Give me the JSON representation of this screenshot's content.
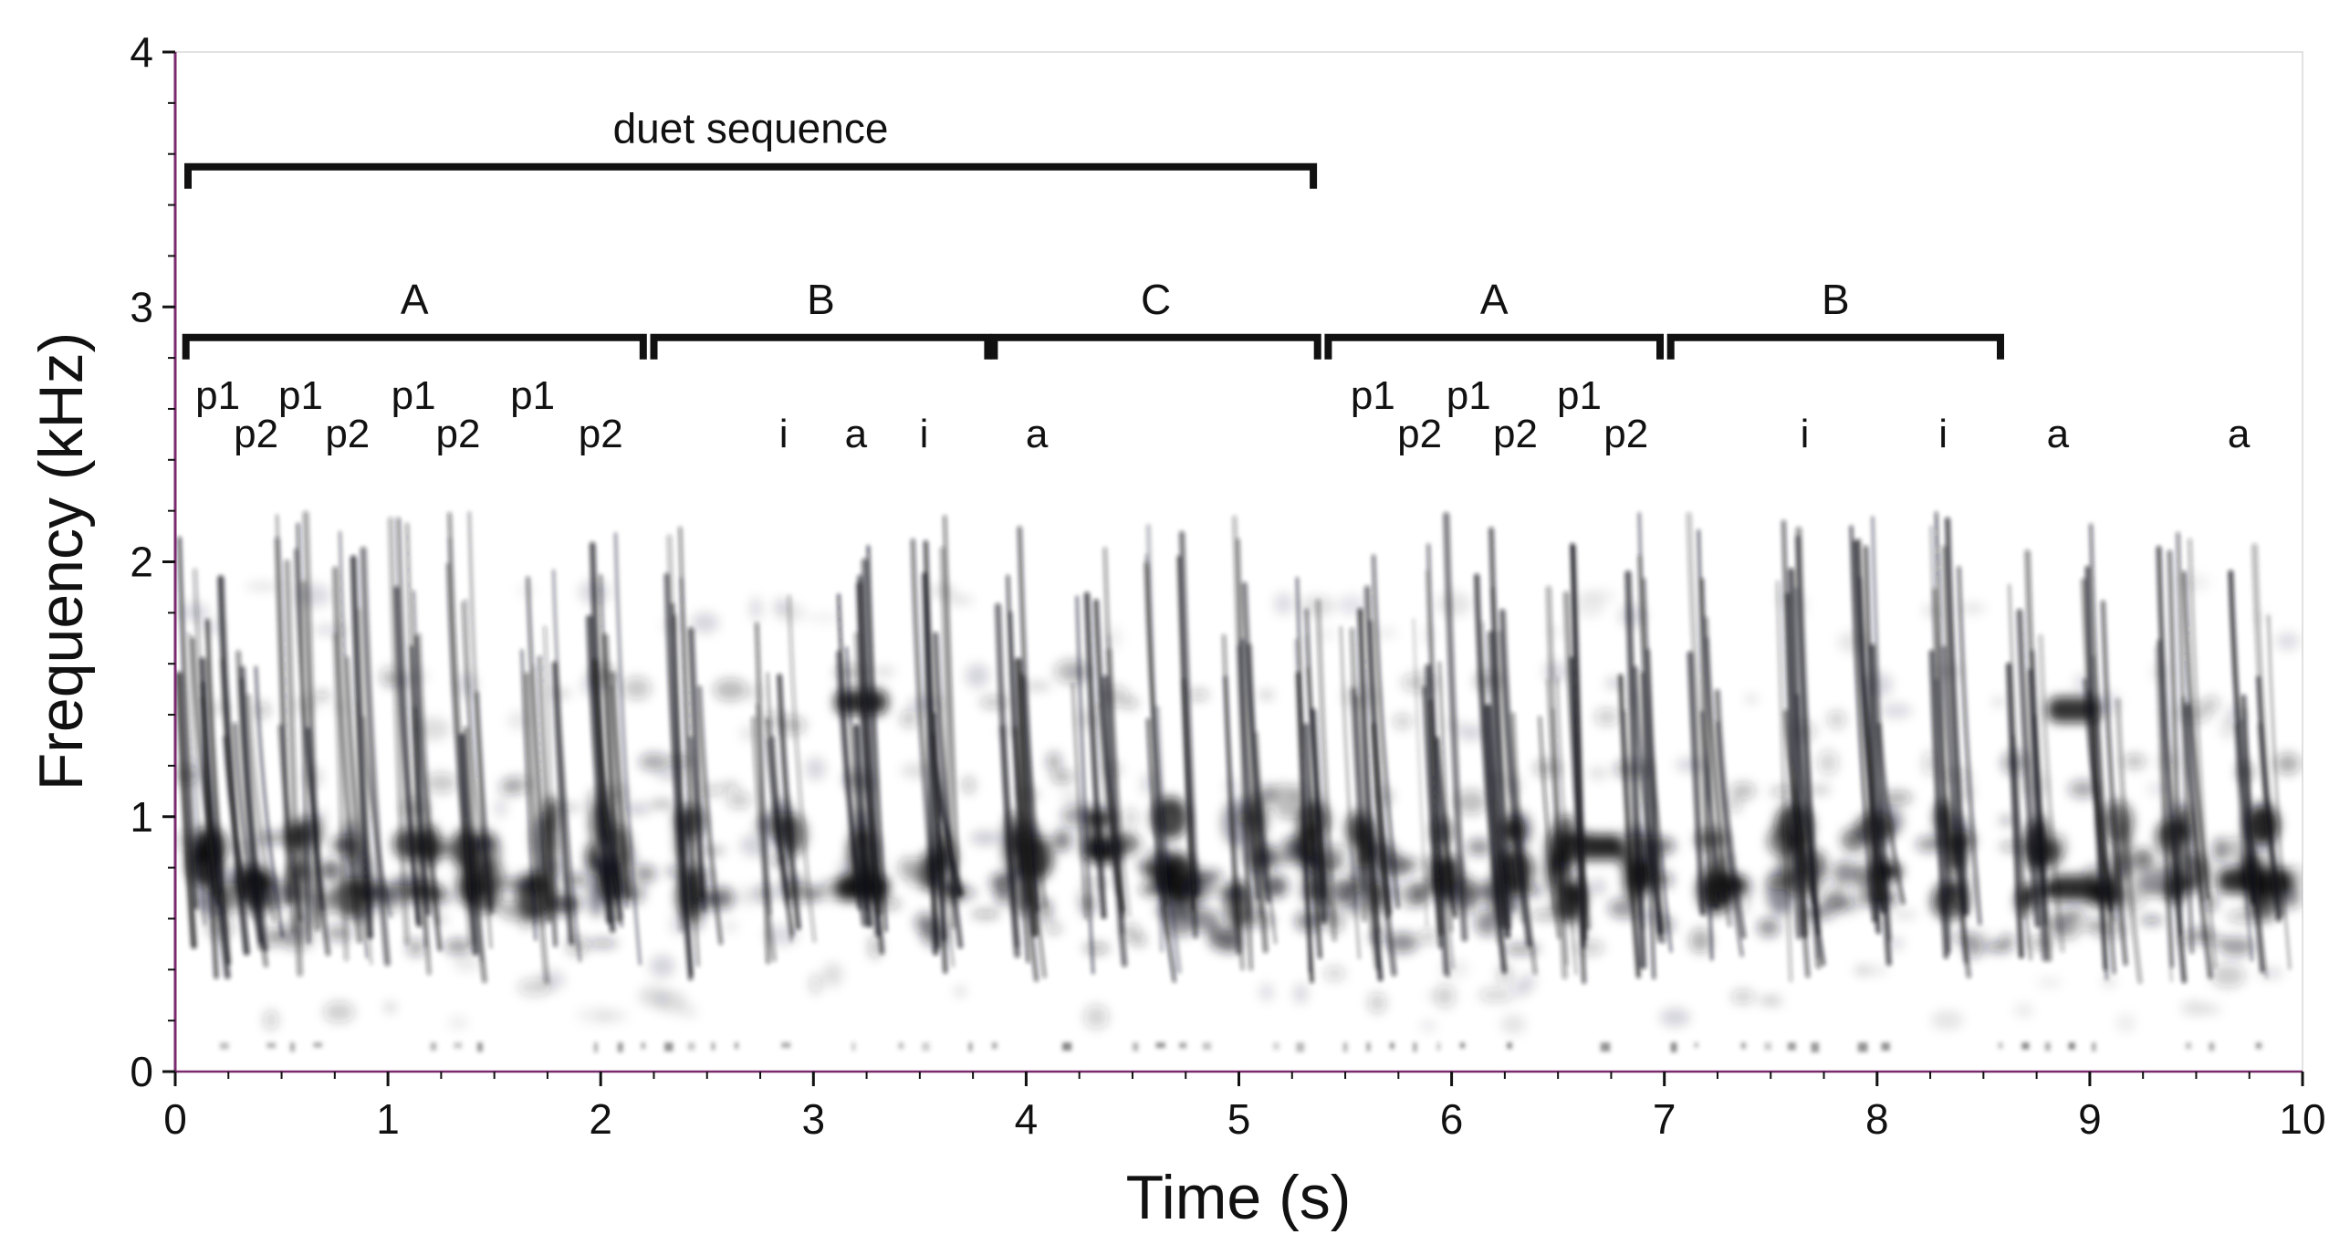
{
  "chart_data": {
    "type": "heatmap",
    "subtype": "spectrogram",
    "xlabel": "Time (s)",
    "ylabel": "Frequency (kHz)",
    "xlim": [
      0,
      10
    ],
    "ylim": [
      0,
      4
    ],
    "xticks": [
      {
        "v": 0,
        "label": "0"
      },
      {
        "v": 1,
        "label": "1"
      },
      {
        "v": 2,
        "label": "2"
      },
      {
        "v": 3,
        "label": "3"
      },
      {
        "v": 4,
        "label": "4"
      },
      {
        "v": 5,
        "label": "5"
      },
      {
        "v": 6,
        "label": "6"
      },
      {
        "v": 7,
        "label": "7"
      },
      {
        "v": 8,
        "label": "8"
      },
      {
        "v": 9,
        "label": "9"
      },
      {
        "v": 10,
        "label": "10"
      }
    ],
    "yticks": [
      {
        "v": 0,
        "label": "0"
      },
      {
        "v": 1,
        "label": "1"
      },
      {
        "v": 2,
        "label": "2"
      },
      {
        "v": 3,
        "label": "3"
      },
      {
        "v": 4,
        "label": "4"
      }
    ],
    "grid": false,
    "colormap": "grayscale (black = high energy)",
    "colors": {
      "ink": "#111111",
      "left_axis": "#7a2a6e",
      "background": "#ffffff"
    },
    "brackets": [
      {
        "label": "duet sequence",
        "start": 0.06,
        "end": 5.35,
        "level": 3.55
      },
      {
        "label": "A",
        "start": 0.05,
        "end": 2.2,
        "level": 2.88
      },
      {
        "label": "B",
        "start": 2.25,
        "end": 3.82,
        "level": 2.88
      },
      {
        "label": "C",
        "start": 3.85,
        "end": 5.37,
        "level": 2.88
      },
      {
        "label": "A",
        "start": 5.42,
        "end": 6.98,
        "level": 2.88
      },
      {
        "label": "B",
        "start": 7.03,
        "end": 8.58,
        "level": 2.88
      }
    ],
    "syllable_labels": [
      {
        "text": "p1",
        "t": 0.2,
        "level": 2.6
      },
      {
        "text": "p2",
        "t": 0.38,
        "level": 2.45
      },
      {
        "text": "p1",
        "t": 0.59,
        "level": 2.6
      },
      {
        "text": "p2",
        "t": 0.81,
        "level": 2.45
      },
      {
        "text": "p1",
        "t": 1.12,
        "level": 2.6
      },
      {
        "text": "p2",
        "t": 1.33,
        "level": 2.45
      },
      {
        "text": "p1",
        "t": 1.68,
        "level": 2.6
      },
      {
        "text": "p2",
        "t": 2.0,
        "level": 2.45
      },
      {
        "text": "i",
        "t": 2.86,
        "level": 2.45
      },
      {
        "text": "a",
        "t": 3.2,
        "level": 2.45
      },
      {
        "text": "i",
        "t": 3.52,
        "level": 2.45
      },
      {
        "text": "a",
        "t": 4.05,
        "level": 2.45
      },
      {
        "text": "p1",
        "t": 5.63,
        "level": 2.6
      },
      {
        "text": "p2",
        "t": 5.85,
        "level": 2.45
      },
      {
        "text": "p1",
        "t": 6.08,
        "level": 2.6
      },
      {
        "text": "p2",
        "t": 6.3,
        "level": 2.45
      },
      {
        "text": "p1",
        "t": 6.6,
        "level": 2.6
      },
      {
        "text": "p2",
        "t": 6.82,
        "level": 2.45
      },
      {
        "text": "i",
        "t": 7.66,
        "level": 2.45
      },
      {
        "text": "i",
        "t": 8.31,
        "level": 2.45
      },
      {
        "text": "a",
        "t": 8.85,
        "level": 2.45
      },
      {
        "text": "a",
        "t": 9.7,
        "level": 2.45
      }
    ],
    "energy_bands_khz": [
      {
        "f": 0.8,
        "intensity": 1.0
      },
      {
        "f": 0.6,
        "intensity": 0.8
      },
      {
        "f": 1.1,
        "intensity": 0.6
      },
      {
        "f": 1.45,
        "intensity": 0.45
      },
      {
        "f": 1.8,
        "intensity": 0.25
      },
      {
        "f": 0.3,
        "intensity": 0.35
      }
    ],
    "syllable_onsets_s": [
      0.1,
      0.3,
      0.55,
      0.8,
      1.1,
      1.35,
      1.7,
      1.98,
      2.4,
      2.8,
      3.2,
      3.55,
      3.95,
      4.3,
      4.65,
      5.0,
      5.3,
      5.55,
      5.9,
      6.2,
      6.5,
      6.85,
      7.2,
      7.55,
      7.95,
      8.3,
      8.7,
      9.05,
      9.4,
      9.75
    ],
    "strong_bands": [
      {
        "t0": 3.1,
        "t1": 3.35,
        "f": 0.72
      },
      {
        "t0": 3.1,
        "t1": 3.35,
        "f": 1.45
      },
      {
        "t0": 8.8,
        "t1": 9.05,
        "f": 0.72
      },
      {
        "t0": 8.8,
        "t1": 9.05,
        "f": 1.42
      },
      {
        "t0": 6.5,
        "t1": 6.8,
        "f": 0.88
      },
      {
        "t0": 9.6,
        "t1": 9.95,
        "f": 0.75
      }
    ]
  }
}
